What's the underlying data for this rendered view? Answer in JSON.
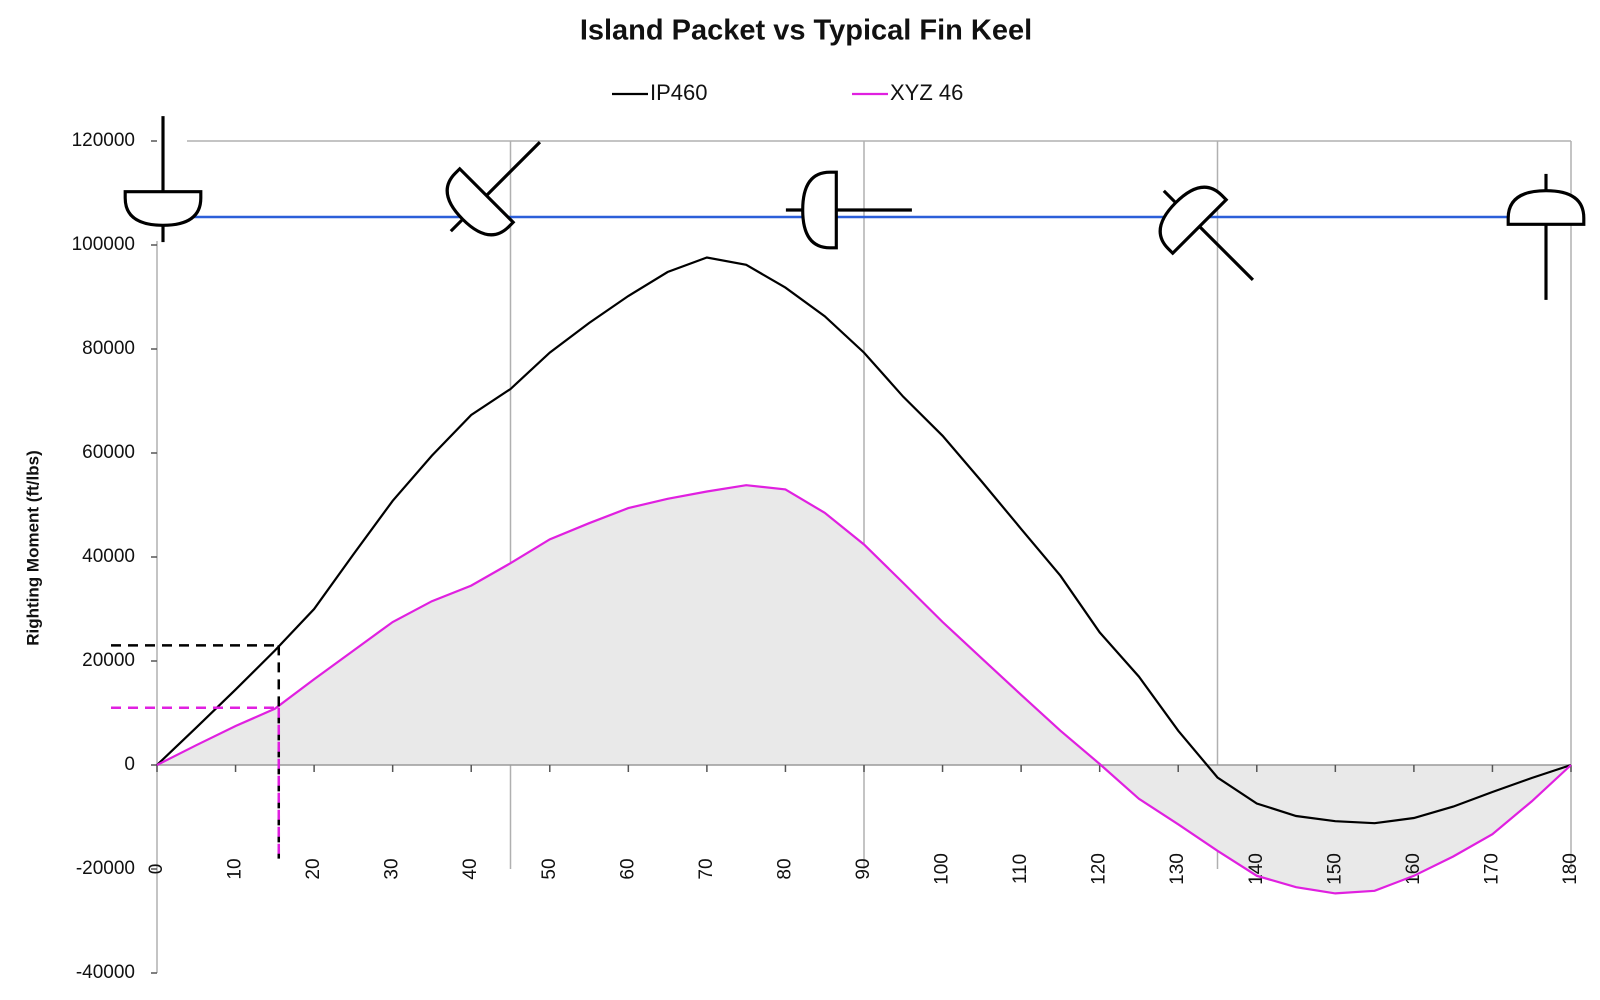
{
  "chart_data": {
    "type": "line",
    "title": "Island Packet vs Typical Fin Keel",
    "y_label": "Righting Moment (ft/lbs)",
    "x": [
      0,
      5,
      10,
      15,
      20,
      25,
      30,
      35,
      40,
      45,
      50,
      55,
      60,
      65,
      70,
      75,
      80,
      85,
      90,
      95,
      100,
      105,
      110,
      115,
      120,
      125,
      130,
      135,
      140,
      145,
      150,
      155,
      160,
      165,
      170,
      175,
      180
    ],
    "series": [
      {
        "name": "IP460",
        "color": "#000000",
        "values": [
          0,
          7200,
          14500,
          22000,
          30000,
          40500,
          50800,
          59500,
          67300,
          72300,
          79300,
          85000,
          90200,
          94800,
          97600,
          96200,
          91800,
          86300,
          79300,
          70800,
          63300,
          54500,
          45400,
          36400,
          25500,
          17000,
          6600,
          -2400,
          -7400,
          -9800,
          -10800,
          -11200,
          -10200,
          -8000,
          -5200,
          -2500,
          0
        ]
      },
      {
        "name": "XYZ 46",
        "color": "#e020e0",
        "fill": "#e9e9e9",
        "values": [
          0,
          3800,
          7500,
          10800,
          16500,
          22000,
          27500,
          31500,
          34500,
          38800,
          43400,
          46500,
          49400,
          51200,
          52600,
          53800,
          53000,
          48500,
          42400,
          35000,
          27500,
          20500,
          13500,
          6600,
          200,
          -6500,
          -11400,
          -16500,
          -21300,
          -23500,
          -24700,
          -24200,
          -21300,
          -17600,
          -13300,
          -7000,
          0
        ]
      }
    ],
    "xlim": [
      0,
      180
    ],
    "xticks": [
      0,
      10,
      20,
      30,
      40,
      50,
      60,
      70,
      80,
      90,
      100,
      110,
      120,
      130,
      140,
      150,
      160,
      170,
      180
    ],
    "ylim": [
      -40000,
      120000
    ],
    "yticks": [
      -40000,
      -20000,
      0,
      20000,
      40000,
      60000,
      80000,
      100000,
      120000
    ],
    "x_grid": [
      45,
      90,
      135,
      180
    ],
    "guides": [
      {
        "x": 15.5,
        "y": 23000,
        "y_end": -18000,
        "color": "#000000"
      },
      {
        "x": 15.5,
        "y": 11000,
        "y_end": -18000,
        "color": "#e020e0"
      }
    ],
    "legend": "top"
  }
}
